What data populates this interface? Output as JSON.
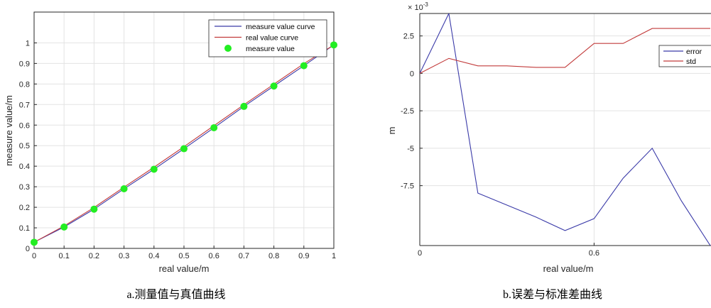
{
  "chart_data": [
    {
      "type": "line",
      "caption": "a.测量值与真值曲线",
      "xlabel": "real value/m",
      "ylabel": "measure value/m",
      "xlim": [
        0,
        1
      ],
      "ylim": [
        0,
        1.15
      ],
      "x_ticks": [
        "0",
        "0.1",
        "0.2",
        "0.3",
        "0.4",
        "0.5",
        "0.6",
        "0.7",
        "0.8",
        "0.9",
        "1"
      ],
      "y_ticks": [
        "0",
        "0.1",
        "0.2",
        "0.3",
        "0.4",
        "0.5",
        "0.6",
        "0.7",
        "0.8",
        "0.9",
        "1"
      ],
      "grid": true,
      "legend_position": "top-right",
      "x": [
        0,
        0.1,
        0.2,
        0.3,
        0.4,
        0.5,
        0.6,
        0.7,
        0.8,
        0.9,
        1.0
      ],
      "series": [
        {
          "name": "measure value curve",
          "style": "line",
          "color": "#3a3aa8",
          "values": [
            0.03,
            0.104,
            0.191,
            0.29,
            0.385,
            0.485,
            0.587,
            0.691,
            0.79,
            0.889,
            0.99
          ]
        },
        {
          "name": "real value curve",
          "style": "line",
          "color": "#c23b3b",
          "values": [
            0.03,
            0.109,
            0.199,
            0.298,
            0.395,
            0.495,
            0.597,
            0.699,
            0.799,
            0.899,
            0.99
          ]
        },
        {
          "name": "measure value",
          "style": "marker",
          "color": "#22ee22",
          "values": [
            0.03,
            0.104,
            0.191,
            0.29,
            0.385,
            0.485,
            0.587,
            0.691,
            0.79,
            0.889,
            0.99
          ]
        }
      ]
    },
    {
      "type": "line",
      "caption": "b.误差与标准差曲线",
      "xlabel": "real value/m",
      "ylabel": "m",
      "exponent": "× 10",
      "exponent_power": "-3",
      "xlim": [
        0,
        1
      ],
      "ylim": [
        -0.0115,
        0.004
      ],
      "x_ticks": [
        {
          "value": 0,
          "label": "0"
        },
        {
          "value": 0.6,
          "label": "0.6"
        }
      ],
      "y_ticks": [
        {
          "value": 0.0025,
          "label": "2.5"
        },
        {
          "value": 0,
          "label": "0"
        },
        {
          "value": -0.0025,
          "label": "-2.5"
        },
        {
          "value": -0.005,
          "label": "-5"
        },
        {
          "value": -0.0075,
          "label": "-7.5"
        }
      ],
      "grid": true,
      "legend_position": "top-right",
      "x": [
        0,
        0.1,
        0.2,
        0.3,
        0.4,
        0.5,
        0.6,
        0.7,
        0.8,
        0.9,
        1.0
      ],
      "series": [
        {
          "name": "error",
          "style": "line",
          "color": "#3a3aa8",
          "values": [
            0.0,
            0.004,
            -0.008,
            -0.0088,
            -0.0096,
            -0.0105,
            -0.0097,
            -0.007,
            -0.005,
            -0.0085,
            -0.0115
          ]
        },
        {
          "name": "std",
          "style": "line",
          "color": "#c23b3b",
          "values": [
            0.0,
            0.001,
            0.0005,
            0.0005,
            0.0004,
            0.0004,
            0.002,
            0.002,
            0.003,
            0.003,
            0.003
          ]
        }
      ]
    }
  ]
}
